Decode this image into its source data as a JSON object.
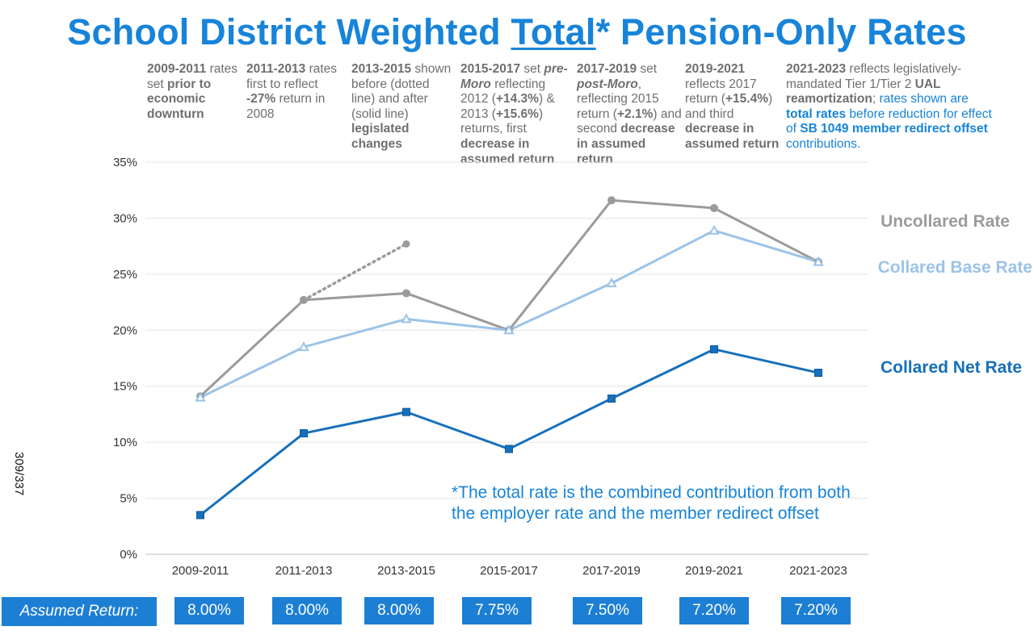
{
  "title": {
    "pre": "School District Weighted ",
    "underlined": "Total",
    "post": "* Pension-Only Rates"
  },
  "side_label": "309/337",
  "notes": [
    {
      "a": "2009-2011",
      "b": " rates set ",
      "c": "prior to economic downturn"
    },
    {
      "a": "2011-2013",
      "b": " rates first to reflect ",
      "c": "-27%",
      "d": " return in 2008"
    },
    {
      "a": "2013-2015",
      "b": " shown before (dotted line) and after (solid line) ",
      "c": "legislated changes"
    },
    {
      "a": "2015-2017",
      "b": " set ",
      "c": "pre-Moro",
      "d": " reflecting 2012 (",
      "e": "+14.3%",
      "f": ") & 2013 (",
      "g": "+15.6%",
      "h": ") returns, first ",
      "i": "decrease in assumed return"
    },
    {
      "a": "2017-2019",
      "b": " set ",
      "c": "post-Moro",
      "d": ", reflecting 2015 return (",
      "e": "+2.1%",
      "f": ") and second ",
      "g": "decrease in assumed return"
    },
    {
      "a": "2019-2021",
      "b": " reflects 2017 return (",
      "c": "+15.4%",
      "d": ") and third ",
      "e": "decrease in assumed return"
    },
    {
      "a": "2021-2023",
      "b": " reflects legislatively-mandated Tier 1/Tier 2 ",
      "c": "UAL reamortization",
      "d": "; ",
      "e": "rates shown are ",
      "f": "total rates",
      "g": " before reduction for effect of ",
      "h": "SB 1049 member redirect offset",
      "i": " contributions."
    }
  ],
  "footnote": {
    "line1": "*The total rate is the combined contribution from both",
    "line2": "the employer rate and the member redirect offset"
  },
  "assumed_return": {
    "label": "Assumed Return:",
    "values": [
      "8.00%",
      "8.00%",
      "8.00%",
      "7.75%",
      "7.50%",
      "7.20%",
      "7.20%"
    ]
  },
  "chart_data": {
    "type": "line",
    "categories": [
      "2009-2011",
      "2011-2013",
      "2013-2015",
      "2015-2017",
      "2017-2019",
      "2019-2021",
      "2021-2023"
    ],
    "y_ticks": [
      "0%",
      "5%",
      "10%",
      "15%",
      "20%",
      "25%",
      "30%",
      "35%"
    ],
    "ylim": [
      0,
      35
    ],
    "grid": true,
    "series": [
      {
        "name": "Uncollared Rate",
        "color": "#9b9b9b",
        "marker": "circle",
        "values": [
          14.1,
          22.7,
          23.3,
          20.0,
          31.6,
          30.9,
          26.1
        ]
      },
      {
        "name": "Collared Base Rate",
        "color": "#9cc3e8",
        "marker": "triangle",
        "values": [
          14.0,
          18.5,
          21.0,
          20.0,
          24.2,
          28.9,
          26.1
        ]
      },
      {
        "name": "Collared Net Rate",
        "color": "#1670bb",
        "marker": "square",
        "values": [
          3.5,
          10.8,
          12.7,
          9.4,
          13.9,
          18.3,
          16.2
        ]
      }
    ],
    "dotted_series": {
      "color": "#9b9b9b",
      "x": [
        "2011-2013",
        "2013-2015"
      ],
      "values": [
        22.7,
        27.7
      ]
    }
  }
}
